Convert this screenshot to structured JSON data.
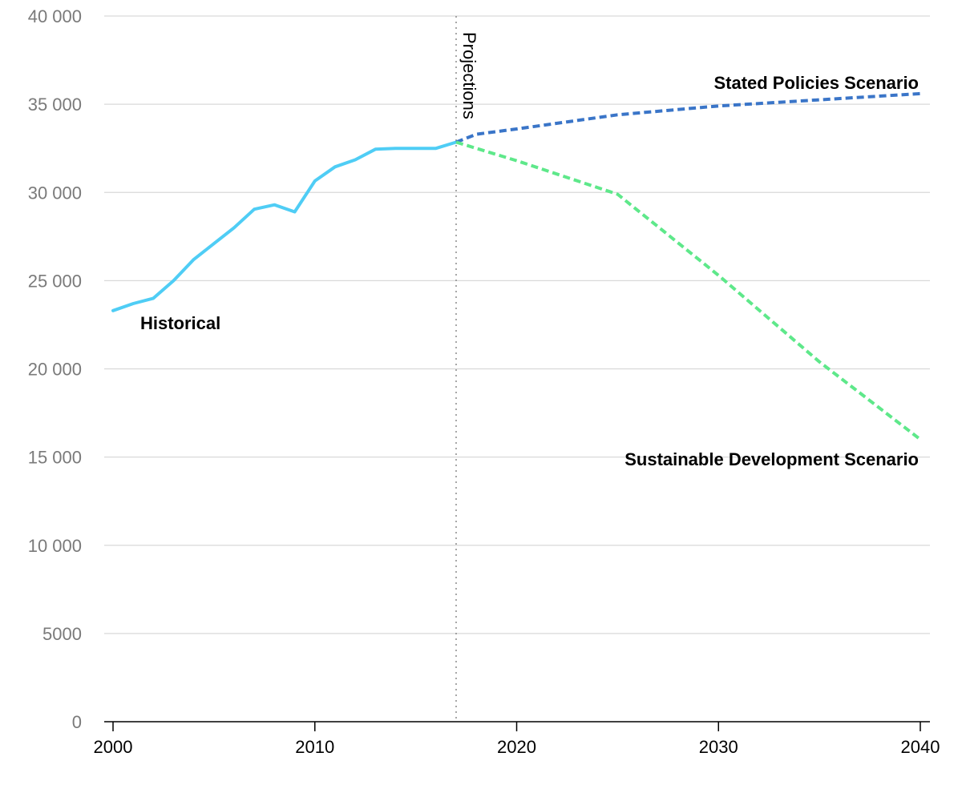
{
  "chart_data": {
    "type": "line",
    "title": "",
    "xlabel": "",
    "ylabel": "",
    "xlim": [
      2000,
      2040
    ],
    "ylim": [
      0,
      40000
    ],
    "grid": true,
    "legend": "none (series labelled directly on chart)",
    "y_ticks": [
      0,
      5000,
      10000,
      15000,
      20000,
      25000,
      30000,
      35000,
      40000
    ],
    "y_tick_labels": [
      "0",
      "5000",
      "10 000",
      "15 000",
      "20 000",
      "25 000",
      "30 000",
      "35 000",
      "40 000"
    ],
    "x_ticks": [
      2000,
      2010,
      2020,
      2030,
      2040
    ],
    "x_tick_labels": [
      "2000",
      "2010",
      "2020",
      "2030",
      "2040"
    ],
    "projection_marker": {
      "x": 2017,
      "label": "Projections"
    },
    "series": [
      {
        "name": "Historical",
        "style": "solid",
        "color": "#4fcdf5",
        "x": [
          2000,
          2001,
          2002,
          2003,
          2004,
          2005,
          2006,
          2007,
          2008,
          2009,
          2010,
          2011,
          2012,
          2013,
          2014,
          2015,
          2016,
          2017
        ],
        "y": [
          23300,
          23700,
          24000,
          25000,
          26200,
          27100,
          28000,
          29050,
          29300,
          28900,
          30650,
          31450,
          31850,
          32450,
          32500,
          32500,
          32500,
          32850
        ]
      },
      {
        "name": "Stated Policies Scenario",
        "style": "dashed",
        "color": "#3a75c8",
        "x": [
          2017,
          2018,
          2020,
          2025,
          2030,
          2035,
          2040
        ],
        "y": [
          32850,
          33300,
          33600,
          34400,
          34900,
          35250,
          35600
        ]
      },
      {
        "name": "Sustainable Development Scenario",
        "style": "dashed",
        "color": "#5ee88a",
        "x": [
          2017,
          2020,
          2025,
          2030,
          2035,
          2040
        ],
        "y": [
          32850,
          31800,
          29900,
          25300,
          20400,
          16000
        ]
      }
    ],
    "annotations": [
      "Historical",
      "Stated Policies Scenario",
      "Sustainable Development Scenario",
      "Projections"
    ]
  }
}
